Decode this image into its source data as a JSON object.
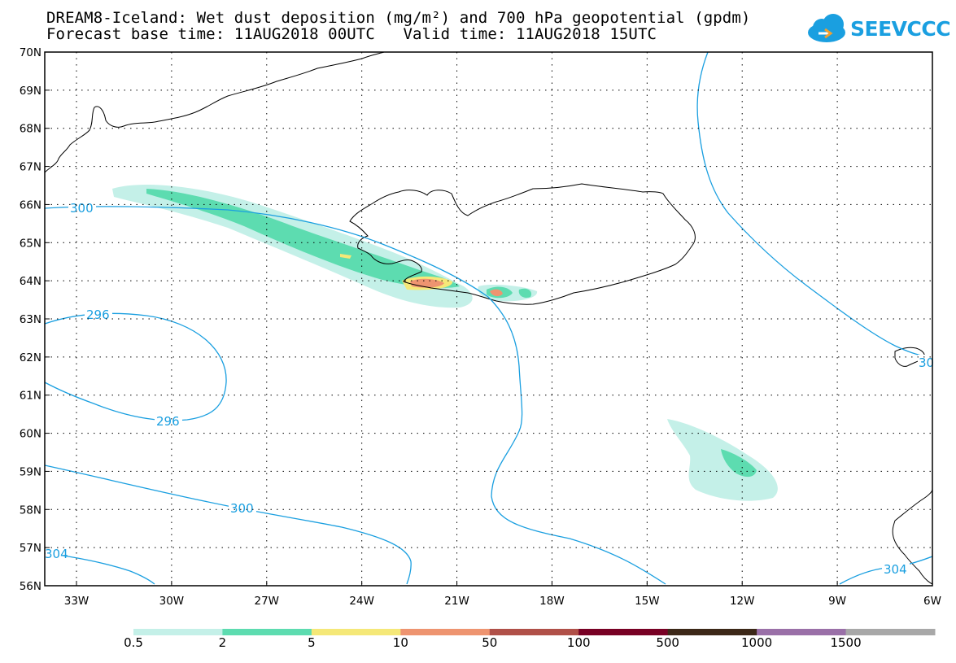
{
  "title_line1": "DREAM8-Iceland: Wet dust deposition (mg/m²) and 700 hPa geopotential (gpdm)",
  "title_line2": "Forecast base time: 11AUG2018 00UTC   Valid time: 11AUG2018 15UTC",
  "logo_text": "SEEVCCC",
  "lat_labels": [
    "70N",
    "69N",
    "68N",
    "67N",
    "66N",
    "65N",
    "64N",
    "63N",
    "62N",
    "61N",
    "60N",
    "59N",
    "58N",
    "57N",
    "56N"
  ],
  "lon_labels": [
    "33W",
    "30W",
    "27W",
    "24W",
    "21W",
    "18W",
    "15W",
    "12W",
    "9W",
    "6W"
  ],
  "contour_labels": [
    "300",
    "296",
    "296",
    "300",
    "304",
    "304",
    "30"
  ],
  "colorbar": {
    "colors": [
      "#c4f0e8",
      "#5ddcb0",
      "#f5e878",
      "#ee9470",
      "#b05048",
      "#780024",
      "#3c2818",
      "#9a70a8",
      "#a8a8a8"
    ],
    "labels": [
      "0.5",
      "2",
      "5",
      "10",
      "50",
      "100",
      "500",
      "1000",
      "1500"
    ]
  },
  "colors": {
    "contour": "#1a9fe0",
    "coast": "#000000",
    "grid": "#000000"
  }
}
